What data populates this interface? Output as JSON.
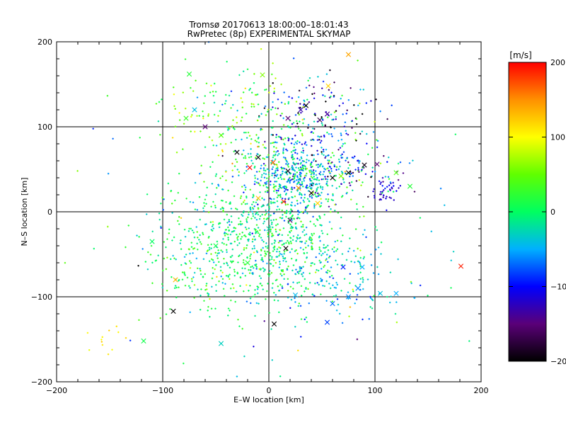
{
  "chart_data": {
    "type": "scatter",
    "title": "Tromsø 20170613 18:00:00–18:01:43",
    "subtitle": "RwPretec (8p) EXPERIMENTAL SKYMAP",
    "xlabel": "E–W location [km]",
    "ylabel": "N–S location [km]",
    "xlim": [
      -200,
      200
    ],
    "ylim": [
      -200,
      200
    ],
    "xticks": [
      "−200",
      "−100",
      "0",
      "100",
      "200"
    ],
    "yticks": [
      "−200",
      "−100",
      "0",
      "100",
      "200"
    ],
    "grid": true,
    "colorbar": {
      "label": "[m/s]",
      "range": [
        -200,
        200
      ],
      "ticks": [
        "−200",
        "−100",
        "0",
        "100",
        "200"
      ]
    },
    "series": [
      {
        "marker": "x",
        "points": [
          {
            "x": -6,
            "y": 161,
            "v": 60
          },
          {
            "x": 56,
            "y": 148,
            "v": 120
          },
          {
            "x": 75,
            "y": 185,
            "v": 140
          },
          {
            "x": -75,
            "y": 162,
            "v": 20
          },
          {
            "x": -70,
            "y": 120,
            "v": -40
          },
          {
            "x": -78,
            "y": 110,
            "v": 30
          },
          {
            "x": -60,
            "y": 100,
            "v": -150
          },
          {
            "x": -45,
            "y": 90,
            "v": 40
          },
          {
            "x": 30,
            "y": 120,
            "v": -130
          },
          {
            "x": 55,
            "y": 115,
            "v": -140
          },
          {
            "x": 18,
            "y": 110,
            "v": -150
          },
          {
            "x": 35,
            "y": 125,
            "v": -200
          },
          {
            "x": 48,
            "y": 108,
            "v": -170
          },
          {
            "x": -30,
            "y": 70,
            "v": -210
          },
          {
            "x": -10,
            "y": 64,
            "v": -200
          },
          {
            "x": 90,
            "y": 55,
            "v": -190
          },
          {
            "x": 102,
            "y": 56,
            "v": -150
          },
          {
            "x": 75,
            "y": 46,
            "v": -210
          },
          {
            "x": 60,
            "y": 40,
            "v": -200
          },
          {
            "x": 18,
            "y": 48,
            "v": -190
          },
          {
            "x": 40,
            "y": 22,
            "v": -200
          },
          {
            "x": 68,
            "y": 42,
            "v": 60
          },
          {
            "x": 120,
            "y": 46,
            "v": 40
          },
          {
            "x": 133,
            "y": 30,
            "v": 20
          },
          {
            "x": 4,
            "y": 58,
            "v": 170
          },
          {
            "x": 14,
            "y": 12,
            "v": 180
          },
          {
            "x": 28,
            "y": 28,
            "v": 150
          },
          {
            "x": 46,
            "y": 10,
            "v": 120
          },
          {
            "x": -10,
            "y": 16,
            "v": 130
          },
          {
            "x": -18,
            "y": 52,
            "v": 200
          },
          {
            "x": 181,
            "y": -64,
            "v": 190
          },
          {
            "x": -88,
            "y": -80,
            "v": 130
          },
          {
            "x": -90,
            "y": -117,
            "v": -210
          },
          {
            "x": 5,
            "y": -132,
            "v": -200
          },
          {
            "x": 16,
            "y": -43,
            "v": -200
          },
          {
            "x": 20,
            "y": -10,
            "v": -160
          },
          {
            "x": 70,
            "y": -65,
            "v": -90
          },
          {
            "x": -20,
            "y": -60,
            "v": 20
          },
          {
            "x": -50,
            "y": -40,
            "v": 10
          },
          {
            "x": 120,
            "y": -96,
            "v": -50
          },
          {
            "x": 105,
            "y": -96,
            "v": -40
          },
          {
            "x": 60,
            "y": -108,
            "v": -70
          },
          {
            "x": 55,
            "y": -130,
            "v": -80
          },
          {
            "x": -118,
            "y": -152,
            "v": 10
          },
          {
            "x": -45,
            "y": -155,
            "v": -30
          },
          {
            "x": -110,
            "y": -35,
            "v": 0
          },
          {
            "x": 88,
            "y": -65,
            "v": -50
          },
          {
            "x": 84,
            "y": -90,
            "v": -60
          },
          {
            "x": 75,
            "y": -100,
            "v": -60
          },
          {
            "x": 25,
            "y": -98,
            "v": -45
          },
          {
            "x": 0,
            "y": -20,
            "v": -20
          }
        ]
      },
      {
        "marker": "dot",
        "clusters": [
          {
            "cx": 25,
            "cy": 45,
            "sx": 22,
            "sy": 25,
            "n": 500,
            "vmean": -40,
            "vsd": 50
          },
          {
            "cx": -5,
            "cy": -30,
            "sx": 40,
            "sy": 40,
            "n": 750,
            "vmean": 0,
            "vsd": 30
          },
          {
            "cx": 40,
            "cy": 110,
            "sx": 30,
            "sy": 25,
            "n": 160,
            "vmean": -100,
            "vsd": 70
          },
          {
            "cx": -30,
            "cy": 110,
            "sx": 35,
            "sy": 35,
            "n": 180,
            "vmean": 30,
            "vsd": 45
          },
          {
            "cx": 110,
            "cy": 25,
            "sx": 6,
            "sy": 7,
            "n": 40,
            "vmean": -120,
            "vsd": 15
          },
          {
            "cx": 60,
            "cy": -80,
            "sx": 40,
            "sy": 28,
            "n": 170,
            "vmean": -40,
            "vsd": 30
          },
          {
            "cx": -60,
            "cy": -60,
            "sx": 30,
            "sy": 30,
            "n": 140,
            "vmean": 10,
            "vsd": 30
          },
          {
            "cx": 75,
            "cy": 50,
            "sx": 25,
            "sy": 15,
            "n": 100,
            "vmean": -60,
            "vsd": 80
          },
          {
            "cx": 0,
            "cy": 0,
            "sx": 120,
            "sy": 120,
            "n": 110,
            "vmean": 0,
            "vsd": 80
          },
          {
            "cx": -155,
            "cy": -145,
            "sx": 10,
            "sy": 10,
            "n": 12,
            "vmean": 110,
            "vsd": 10
          }
        ]
      }
    ]
  }
}
